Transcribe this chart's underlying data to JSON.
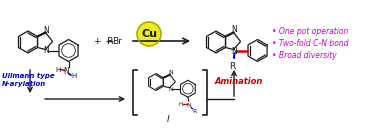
{
  "background_color": "#ffffff",
  "bullet_points": [
    "One pot operation",
    "Two-fold C-N bond",
    "Broad diversity"
  ],
  "bullet_color": "#cc00cc",
  "cu_color": "#ecec20",
  "cu_text": "Cu",
  "ullmann_text": "Ullmann type\nN-arylation",
  "ullmann_color": "#0000cc",
  "amination_text": "Amination",
  "amination_color": "#cc0000",
  "intermediate_label": "I",
  "bond_color": "#1a1a1a",
  "red_bond": "#dd0000",
  "blue_bond": "#0000dd"
}
